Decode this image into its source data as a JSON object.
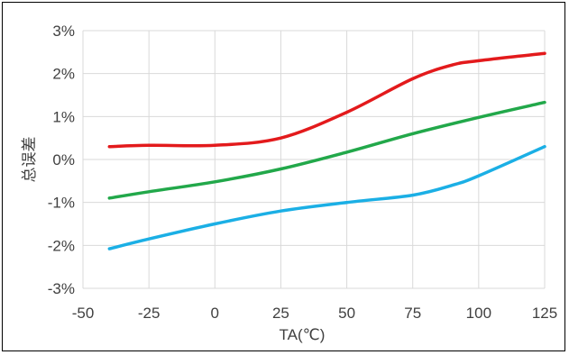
{
  "chart_data": {
    "type": "line",
    "title": "",
    "xlabel": "TA(℃)",
    "ylabel": "总误差",
    "xlim": [
      -50,
      125
    ],
    "ylim": [
      -3,
      3
    ],
    "x_ticks": [
      -50,
      -25,
      0,
      25,
      50,
      75,
      100,
      125
    ],
    "y_ticks": [
      -3,
      -2,
      -1,
      0,
      1,
      2,
      3
    ],
    "y_tick_labels": [
      "-3%",
      "-2%",
      "-1%",
      "0%",
      "1%",
      "2%",
      "3%"
    ],
    "x_tick_labels": [
      "-50",
      "-25",
      "0",
      "25",
      "50",
      "75",
      "100",
      "125"
    ],
    "grid": "vertical and horizontal",
    "legend": "none",
    "series": [
      {
        "color": "#e31a1c",
        "x": [
          -40,
          -25,
          0,
          25,
          50,
          75,
          90,
          100,
          125
        ],
        "y": [
          0.3,
          0.33,
          0.33,
          0.5,
          1.1,
          1.88,
          2.2,
          2.3,
          2.47
        ]
      },
      {
        "color": "#22a84a",
        "x": [
          -40,
          -25,
          0,
          25,
          50,
          75,
          100,
          125
        ],
        "y": [
          -0.9,
          -0.75,
          -0.52,
          -0.22,
          0.17,
          0.6,
          0.98,
          1.33
        ]
      },
      {
        "color": "#1bafe5",
        "x": [
          -40,
          -25,
          0,
          25,
          50,
          75,
          90,
          100,
          125
        ],
        "y": [
          -2.08,
          -1.85,
          -1.5,
          -1.2,
          -1.0,
          -0.83,
          -0.6,
          -0.38,
          0.3
        ]
      }
    ]
  }
}
